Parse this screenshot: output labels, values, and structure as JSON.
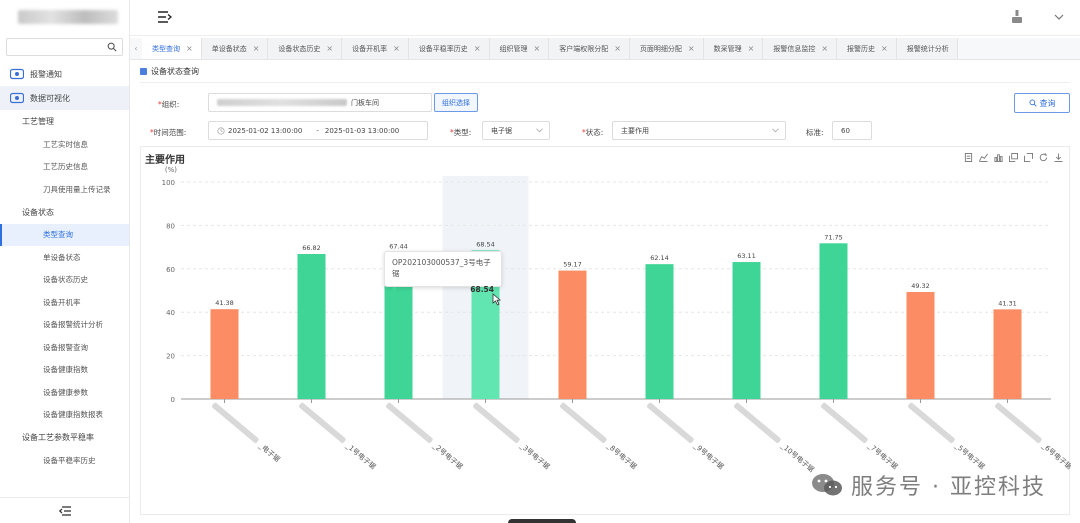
{
  "sidebar": {
    "search_placeholder": "",
    "items": [
      {
        "label": "报警通知"
      },
      {
        "label": "数据可视化"
      },
      {
        "label": "工艺管理"
      },
      {
        "label": "工艺实时信息"
      },
      {
        "label": "工艺历史信息"
      },
      {
        "label": "刀具使用量上传记录"
      },
      {
        "label": "设备状态"
      },
      {
        "label": "类型查询"
      },
      {
        "label": "单设备状态"
      },
      {
        "label": "设备状态历史"
      },
      {
        "label": "设备开机率"
      },
      {
        "label": "设备报警统计分析"
      },
      {
        "label": "设备报警查询"
      },
      {
        "label": "设备健康指数"
      },
      {
        "label": "设备健康参数"
      },
      {
        "label": "设备健康指数报表"
      },
      {
        "label": "设备工艺参数平稳率"
      },
      {
        "label": "设备平稳率历史"
      }
    ]
  },
  "tabs": [
    {
      "label": "类型查询"
    },
    {
      "label": "单设备状态"
    },
    {
      "label": "设备状态历史"
    },
    {
      "label": "设备开机率"
    },
    {
      "label": "设备平稳率历史"
    },
    {
      "label": "组织管理"
    },
    {
      "label": "客户端权限分配"
    },
    {
      "label": "页面明细分配"
    },
    {
      "label": "数采管理"
    },
    {
      "label": "报警信息监控"
    },
    {
      "label": "报警历史"
    },
    {
      "label": "报警统计分析"
    }
  ],
  "page": {
    "section_title": "设备状态查询",
    "org_label": "组织:",
    "org_value_suffix": "门板车间",
    "org_select_label": "组织选择",
    "query_label": "查询",
    "time_label": "时间范围:",
    "time_start": "2025-01-02 13:00:00",
    "time_sep": "-",
    "time_end": "2025-01-03 13:00:00",
    "type_label": "类型:",
    "type_value": "电子锯",
    "state_label": "状态:",
    "state_value": "主要作用",
    "standard_label": "标准:",
    "standard_value": "60"
  },
  "colors": {
    "accent": "#2f6fde",
    "above_standard": "#3ed597",
    "below_standard": "#fb8c63",
    "highlight": "#62e6b1"
  },
  "tooltip": {
    "title": "OP202103000537_3号电子锯",
    "value": "68.54"
  },
  "watermark": "服务号 · 亚控科技",
  "chart_data": {
    "type": "bar",
    "title": "主要作用",
    "ylabel": "(%)",
    "ylim": [
      0,
      100
    ],
    "yticks": [
      0,
      20,
      40,
      60,
      80,
      100
    ],
    "standard": 60,
    "highlight_index": 3,
    "categories": [
      "_电子锯",
      "_1号电子锯",
      "_2号电子锯",
      "_3号电子锯",
      "_8号电子锯",
      "_9号电子锯",
      "_10号电子锯",
      "_7号电子锯",
      "_5号电子锯",
      "_6号电子锯"
    ],
    "values": [
      41.38,
      66.82,
      67.44,
      68.54,
      59.17,
      62.14,
      63.11,
      71.75,
      49.32,
      41.31
    ]
  }
}
